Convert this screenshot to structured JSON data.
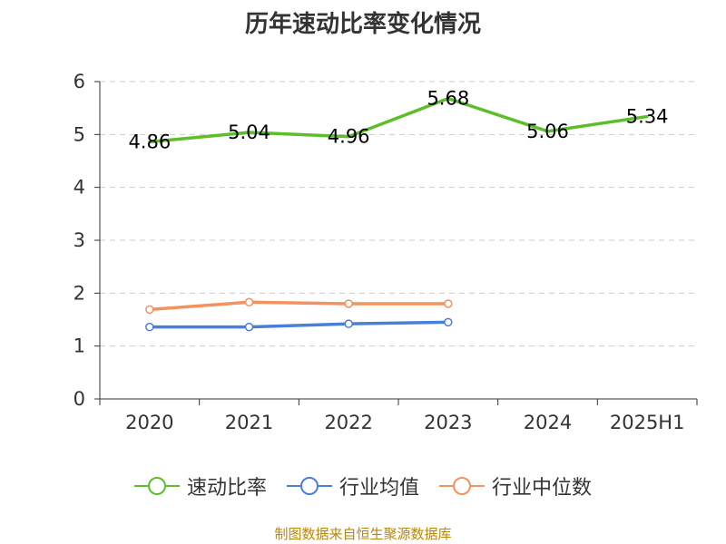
{
  "chart_data": {
    "type": "line",
    "title": "历年速动比率变化情况",
    "categories": [
      "2020",
      "2021",
      "2022",
      "2023",
      "2024",
      "2025H1"
    ],
    "ylim": [
      0,
      6
    ],
    "yticks": [
      "0",
      "1",
      "2",
      "3",
      "4",
      "5",
      "6"
    ],
    "grid": true,
    "legend_position": "bottom",
    "series": [
      {
        "name": "速动比率",
        "color": "#5cbf2a",
        "values": [
          4.86,
          5.04,
          4.96,
          5.68,
          5.06,
          5.34
        ],
        "labels": [
          "4.86",
          "5.04",
          "4.96",
          "5.68",
          "5.06",
          "5.34"
        ]
      },
      {
        "name": "行业均值",
        "color": "#4a7fd8",
        "values": [
          1.36,
          1.36,
          1.42,
          1.45,
          null,
          null
        ]
      },
      {
        "name": "行业中位数",
        "color": "#f4925e",
        "values": [
          1.69,
          1.83,
          1.8,
          1.8,
          null,
          null
        ]
      }
    ]
  },
  "source_text": "制图数据来自恒生聚源数据库"
}
